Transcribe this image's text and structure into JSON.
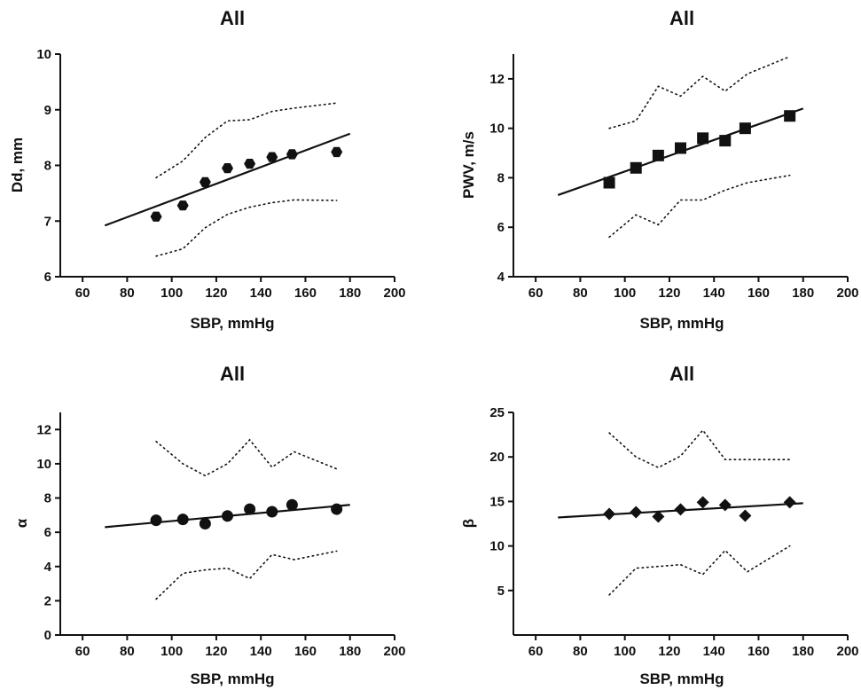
{
  "chart_data": [
    {
      "type": "scatter",
      "title": "All",
      "xlabel": "SBP, mmHg",
      "ylabel": "Dd, mm",
      "xlim": [
        50,
        200
      ],
      "ylim": [
        6,
        10
      ],
      "xticks": [
        60,
        80,
        100,
        120,
        140,
        160,
        180,
        200
      ],
      "yticks": [
        6,
        7,
        8,
        9,
        10
      ],
      "marker": "hexagon",
      "points": [
        {
          "x": 93,
          "y": 7.08
        },
        {
          "x": 105,
          "y": 7.28
        },
        {
          "x": 115,
          "y": 7.7
        },
        {
          "x": 125,
          "y": 7.95
        },
        {
          "x": 135,
          "y": 8.03
        },
        {
          "x": 145,
          "y": 8.15
        },
        {
          "x": 154,
          "y": 8.2
        },
        {
          "x": 174,
          "y": 8.24
        }
      ],
      "regression_line": [
        {
          "x": 70,
          "y": 6.92
        },
        {
          "x": 180,
          "y": 8.57
        }
      ],
      "upper_band": [
        {
          "x": 93,
          "y": 7.78
        },
        {
          "x": 105,
          "y": 8.08
        },
        {
          "x": 115,
          "y": 8.5
        },
        {
          "x": 125,
          "y": 8.8
        },
        {
          "x": 135,
          "y": 8.82
        },
        {
          "x": 145,
          "y": 8.97
        },
        {
          "x": 155,
          "y": 9.03
        },
        {
          "x": 174,
          "y": 9.12
        }
      ],
      "lower_band": [
        {
          "x": 93,
          "y": 6.37
        },
        {
          "x": 105,
          "y": 6.5
        },
        {
          "x": 115,
          "y": 6.88
        },
        {
          "x": 125,
          "y": 7.12
        },
        {
          "x": 135,
          "y": 7.25
        },
        {
          "x": 145,
          "y": 7.33
        },
        {
          "x": 155,
          "y": 7.38
        },
        {
          "x": 174,
          "y": 7.37
        }
      ]
    },
    {
      "type": "scatter",
      "title": "All",
      "xlabel": "SBP, mmHg",
      "ylabel": "PWV, m/s",
      "xlim": [
        50,
        200
      ],
      "ylim": [
        4,
        13
      ],
      "xticks": [
        60,
        80,
        100,
        120,
        140,
        160,
        180,
        200
      ],
      "yticks": [
        4,
        6,
        8,
        10,
        12
      ],
      "marker": "square",
      "points": [
        {
          "x": 93,
          "y": 7.8
        },
        {
          "x": 105,
          "y": 8.4
        },
        {
          "x": 115,
          "y": 8.9
        },
        {
          "x": 125,
          "y": 9.2
        },
        {
          "x": 135,
          "y": 9.6
        },
        {
          "x": 145,
          "y": 9.5
        },
        {
          "x": 154,
          "y": 10.0
        },
        {
          "x": 174,
          "y": 10.5
        }
      ],
      "regression_line": [
        {
          "x": 70,
          "y": 7.3
        },
        {
          "x": 180,
          "y": 10.8
        }
      ],
      "upper_band": [
        {
          "x": 93,
          "y": 10.0
        },
        {
          "x": 105,
          "y": 10.3
        },
        {
          "x": 115,
          "y": 11.7
        },
        {
          "x": 125,
          "y": 11.3
        },
        {
          "x": 135,
          "y": 12.1
        },
        {
          "x": 145,
          "y": 11.5
        },
        {
          "x": 155,
          "y": 12.2
        },
        {
          "x": 174,
          "y": 12.9
        }
      ],
      "lower_band": [
        {
          "x": 93,
          "y": 5.6
        },
        {
          "x": 105,
          "y": 6.5
        },
        {
          "x": 115,
          "y": 6.1
        },
        {
          "x": 125,
          "y": 7.1
        },
        {
          "x": 135,
          "y": 7.1
        },
        {
          "x": 145,
          "y": 7.5
        },
        {
          "x": 155,
          "y": 7.8
        },
        {
          "x": 174,
          "y": 8.1
        }
      ]
    },
    {
      "type": "scatter",
      "title": "All",
      "xlabel": "SBP, mmHg",
      "ylabel": "α",
      "xlim": [
        50,
        200
      ],
      "ylim": [
        0,
        13
      ],
      "xticks": [
        60,
        80,
        100,
        120,
        140,
        160,
        180,
        200
      ],
      "yticks": [
        0,
        2,
        4,
        6,
        8,
        10,
        12
      ],
      "marker": "circle",
      "points": [
        {
          "x": 93,
          "y": 6.7
        },
        {
          "x": 105,
          "y": 6.75
        },
        {
          "x": 115,
          "y": 6.5
        },
        {
          "x": 125,
          "y": 6.95
        },
        {
          "x": 135,
          "y": 7.35
        },
        {
          "x": 145,
          "y": 7.2
        },
        {
          "x": 154,
          "y": 7.6
        },
        {
          "x": 174,
          "y": 7.35
        }
      ],
      "regression_line": [
        {
          "x": 70,
          "y": 6.3
        },
        {
          "x": 180,
          "y": 7.6
        }
      ],
      "upper_band": [
        {
          "x": 93,
          "y": 11.3
        },
        {
          "x": 105,
          "y": 10.0
        },
        {
          "x": 115,
          "y": 9.3
        },
        {
          "x": 125,
          "y": 10.0
        },
        {
          "x": 135,
          "y": 11.4
        },
        {
          "x": 145,
          "y": 9.8
        },
        {
          "x": 155,
          "y": 10.7
        },
        {
          "x": 174,
          "y": 9.7
        }
      ],
      "lower_band": [
        {
          "x": 93,
          "y": 2.1
        },
        {
          "x": 105,
          "y": 3.6
        },
        {
          "x": 115,
          "y": 3.8
        },
        {
          "x": 125,
          "y": 3.9
        },
        {
          "x": 135,
          "y": 3.3
        },
        {
          "x": 145,
          "y": 4.7
        },
        {
          "x": 155,
          "y": 4.4
        },
        {
          "x": 174,
          "y": 4.9
        }
      ]
    },
    {
      "type": "scatter",
      "title": "All",
      "xlabel": "SBP, mmHg",
      "ylabel": "β",
      "xlim": [
        50,
        200
      ],
      "ylim": [
        0,
        25
      ],
      "xticks": [
        60,
        80,
        100,
        120,
        140,
        160,
        180,
        200
      ],
      "yticks": [
        5,
        10,
        15,
        20,
        25
      ],
      "marker": "diamond",
      "points": [
        {
          "x": 93,
          "y": 13.6
        },
        {
          "x": 105,
          "y": 13.8
        },
        {
          "x": 115,
          "y": 13.3
        },
        {
          "x": 125,
          "y": 14.1
        },
        {
          "x": 135,
          "y": 14.9
        },
        {
          "x": 145,
          "y": 14.6
        },
        {
          "x": 154,
          "y": 13.4
        },
        {
          "x": 174,
          "y": 14.9
        }
      ],
      "regression_line": [
        {
          "x": 70,
          "y": 13.2
        },
        {
          "x": 180,
          "y": 14.8
        }
      ],
      "upper_band": [
        {
          "x": 93,
          "y": 22.7
        },
        {
          "x": 105,
          "y": 20.0
        },
        {
          "x": 115,
          "y": 18.8
        },
        {
          "x": 125,
          "y": 20.1
        },
        {
          "x": 135,
          "y": 23.0
        },
        {
          "x": 145,
          "y": 19.7
        },
        {
          "x": 155,
          "y": 19.7
        },
        {
          "x": 174,
          "y": 19.7
        }
      ],
      "lower_band": [
        {
          "x": 93,
          "y": 4.5
        },
        {
          "x": 105,
          "y": 7.5
        },
        {
          "x": 115,
          "y": 7.7
        },
        {
          "x": 125,
          "y": 7.9
        },
        {
          "x": 135,
          "y": 6.8
        },
        {
          "x": 145,
          "y": 9.5
        },
        {
          "x": 155,
          "y": 7.1
        },
        {
          "x": 174,
          "y": 10.0
        }
      ]
    }
  ]
}
